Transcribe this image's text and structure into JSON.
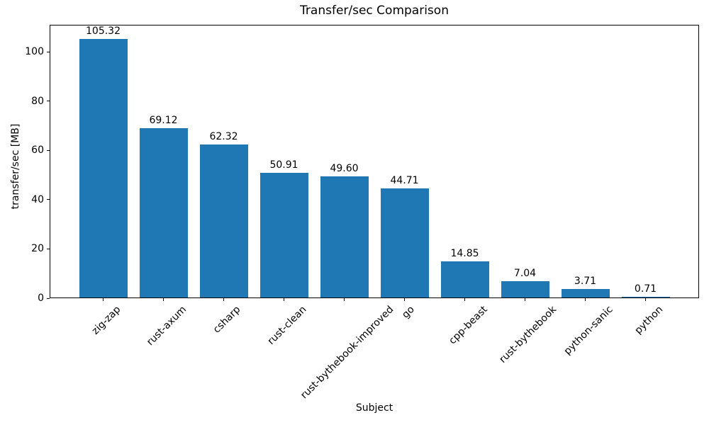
{
  "chart_data": {
    "type": "bar",
    "title": "Transfer/sec Comparison",
    "xlabel": "Subject",
    "ylabel": "transfer/sec [MB]",
    "categories": [
      "zig-zap",
      "rust-axum",
      "csharp",
      "rust-clean",
      "rust-bythebook-improved",
      "go",
      "cpp-beast",
      "rust-bythebook",
      "python-sanic",
      "python"
    ],
    "values": [
      105.32,
      69.12,
      62.32,
      50.91,
      49.6,
      44.71,
      14.85,
      7.04,
      3.71,
      0.71
    ],
    "value_labels": [
      "105.32",
      "69.12",
      "62.32",
      "50.91",
      "49.60",
      "44.71",
      "14.85",
      "7.04",
      "3.71",
      "0.71"
    ],
    "yticks": [
      0,
      20,
      40,
      60,
      80,
      100
    ],
    "ylim": [
      0,
      111
    ],
    "xtick_rotation_deg": 45,
    "bar_color": "#1f77b4",
    "text_color": "#000000",
    "background_color": "#ffffff",
    "grid": false,
    "legend": null
  }
}
